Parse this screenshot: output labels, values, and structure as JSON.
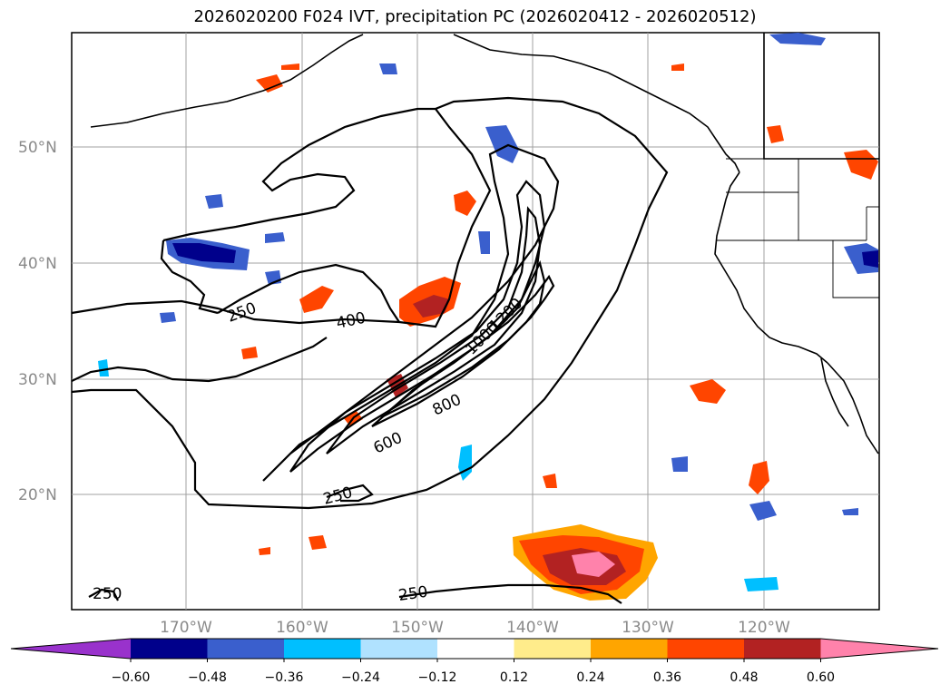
{
  "title": "2026020200 F024 IVT, precipitation PC (2026020412 - 2026020512)",
  "map": {
    "lat_labels": [
      "50°N",
      "40°N",
      "30°N",
      "20°N"
    ],
    "lon_labels": [
      "170°W",
      "160°W",
      "150°W",
      "140°W",
      "130°W",
      "120°W"
    ]
  },
  "ivt_contour_labels": [
    "250",
    "400",
    "1000",
    "1200",
    "800",
    "600",
    "250",
    "250",
    "250"
  ],
  "colorbar": {
    "ticks": [
      "−0.60",
      "−0.48",
      "−0.36",
      "−0.24",
      "−0.12",
      "0.12",
      "0.24",
      "0.36",
      "0.48",
      "0.60"
    ],
    "colors": [
      "#9932cc",
      "#00008b",
      "#3a5fcd",
      "#00bfff",
      "#b0e2ff",
      "#ffffff",
      "#ffec8b",
      "#ffa500",
      "#ff4500",
      "#b22222",
      "#ff82ab"
    ]
  }
}
